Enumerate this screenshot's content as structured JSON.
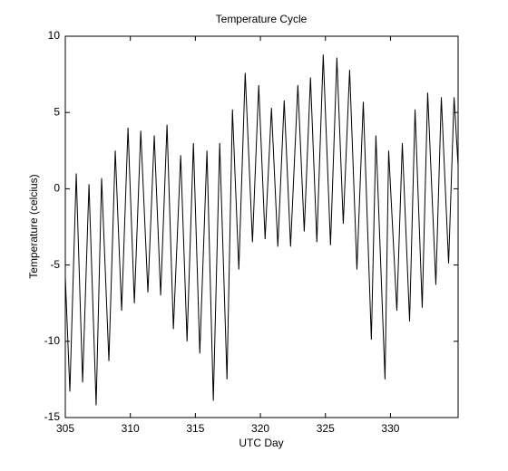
{
  "chart_data": {
    "type": "line",
    "title": "Temperature Cycle",
    "xlabel": "UTC Day",
    "ylabel": "Temperature (celcius)",
    "xlim": [
      305,
      335.2
    ],
    "ylim": [
      -15,
      10
    ],
    "xticks": [
      305,
      310,
      315,
      320,
      325,
      330
    ],
    "yticks": [
      -15,
      -10,
      -5,
      0,
      5,
      10
    ],
    "x": [
      305.0,
      305.35,
      305.84,
      306.33,
      306.82,
      307.37,
      307.79,
      308.35,
      308.84,
      309.33,
      309.82,
      310.31,
      310.8,
      311.35,
      311.84,
      312.33,
      312.82,
      313.31,
      313.87,
      314.36,
      314.85,
      315.34,
      315.89,
      316.38,
      316.87,
      317.43,
      317.85,
      318.34,
      318.83,
      319.39,
      319.87,
      320.36,
      320.85,
      321.34,
      321.83,
      322.32,
      322.88,
      323.37,
      323.85,
      324.34,
      324.83,
      325.39,
      325.88,
      326.37,
      326.86,
      327.42,
      327.91,
      328.53,
      328.88,
      329.58,
      329.86,
      330.49,
      330.91,
      331.47,
      331.89,
      332.44,
      332.86,
      333.49,
      333.91,
      334.47,
      334.89,
      335.2
    ],
    "series": [
      {
        "color": "#000000",
        "values": [
          -5.8,
          -13.3,
          1.0,
          -12.7,
          0.3,
          -14.2,
          0.7,
          -11.3,
          2.5,
          -8.0,
          4.0,
          -7.5,
          3.8,
          -6.8,
          3.5,
          -7.0,
          4.2,
          -9.2,
          2.2,
          -10.0,
          3.0,
          -10.8,
          2.5,
          -13.9,
          3.0,
          -12.5,
          5.2,
          -5.3,
          7.6,
          -3.5,
          6.8,
          -3.3,
          5.3,
          -3.8,
          5.8,
          -3.8,
          6.8,
          -2.8,
          7.3,
          -3.5,
          8.8,
          -3.7,
          8.6,
          -2.3,
          7.8,
          -5.3,
          5.7,
          -9.9,
          3.5,
          -12.5,
          2.5,
          -8.0,
          3.0,
          -8.7,
          5.2,
          -7.8,
          6.3,
          -6.3,
          6.0,
          -4.9,
          6.0,
          1.5
        ]
      }
    ]
  }
}
